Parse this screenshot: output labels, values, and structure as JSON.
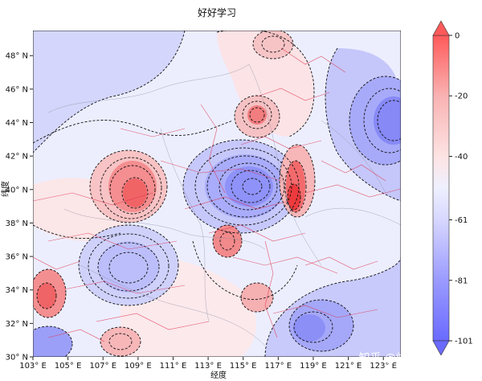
{
  "map": {
    "title": "好好学习",
    "xlabel": "经度",
    "ylabel": "纬度",
    "x_ticks": [
      "103° E",
      "105° E",
      "107° E",
      "109° E",
      "111° E",
      "113° E",
      "115° E",
      "117° E",
      "119° E",
      "121° E",
      "123° E"
    ],
    "y_ticks": [
      "30° N",
      "32° N",
      "34° N",
      "36° N",
      "38° N",
      "40° N",
      "42° N",
      "44° N",
      "46° N",
      "48° N"
    ],
    "lon_range": [
      103,
      124
    ],
    "lat_range": [
      30,
      49.5
    ],
    "contour_style": "dashed-black",
    "colormap": "bwr_r-like (blue low, red high)",
    "colorbar": {
      "min": -101,
      "max": 0,
      "tick_labels": [
        "0",
        "-20",
        "-40",
        "-61",
        "-81",
        "-101"
      ],
      "tick_values": [
        0,
        -20,
        -40,
        -61,
        -81,
        -101
      ],
      "extend": "both"
    },
    "colors": {
      "red_high": "#ff4d4d",
      "red_mid": "#f9b3b3",
      "neutral": "#eef0ff",
      "blue_mid": "#b9b9ff",
      "blue_low": "#6a6aff",
      "fault_lines": "#e0304a"
    }
  },
  "watermark": {
    "text": "知乎 @峰哥python笔记"
  }
}
